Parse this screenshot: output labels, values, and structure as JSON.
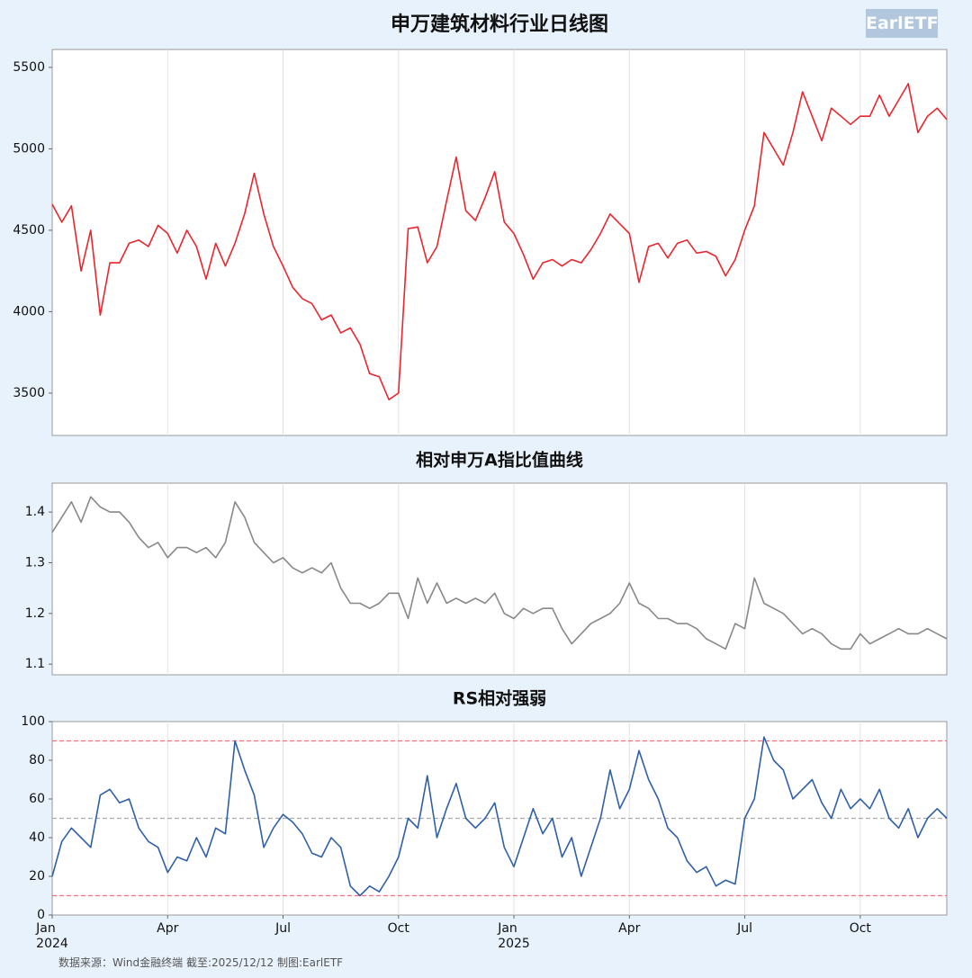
{
  "watermark": "EarlETF",
  "source": "数据来源：Wind金融终端 截至:2025/12/12 制图:EarlETF",
  "chart_data": [
    {
      "type": "line",
      "title": "申万建筑材料行业日线图",
      "ylim": [
        3240,
        5610
      ],
      "yticks": [
        3500,
        4000,
        4500,
        5000,
        5500
      ],
      "grid": true,
      "series": [
        {
          "name": "申万建筑材料",
          "color": "#e8262d",
          "values": [
            4660,
            4550,
            4650,
            4250,
            4500,
            3980,
            4300,
            4300,
            4420,
            4440,
            4400,
            4530,
            4480,
            4360,
            4500,
            4400,
            4200,
            4420,
            4280,
            4420,
            4600,
            4850,
            4600,
            4400,
            4280,
            4150,
            4080,
            4050,
            3950,
            3980,
            3870,
            3900,
            3800,
            3620,
            3600,
            3460,
            3500,
            4510,
            4520,
            4300,
            4400,
            4680,
            4950,
            4620,
            4560,
            4700,
            4860,
            4550,
            4480,
            4350,
            4200,
            4300,
            4320,
            4280,
            4320,
            4300,
            4380,
            4480,
            4600,
            4540,
            4480,
            4180,
            4400,
            4420,
            4330,
            4420,
            4440,
            4360,
            4370,
            4340,
            4220,
            4320,
            4500,
            4650,
            5100,
            5000,
            4900,
            5100,
            5350,
            5200,
            5050,
            5250,
            5200,
            5150,
            5200,
            5200,
            5330,
            5200,
            5300,
            5400,
            5100,
            5200,
            5250,
            5180
          ]
        }
      ]
    },
    {
      "type": "line",
      "title": "相对申万A指比值曲线",
      "ylim": [
        1.079,
        1.457
      ],
      "yticks": [
        1.1,
        1.2,
        1.3,
        1.4
      ],
      "grid": true,
      "series": [
        {
          "name": "比值",
          "color": "#888888",
          "values": [
            1.36,
            1.39,
            1.42,
            1.38,
            1.43,
            1.41,
            1.4,
            1.4,
            1.38,
            1.35,
            1.33,
            1.34,
            1.31,
            1.33,
            1.33,
            1.32,
            1.33,
            1.31,
            1.34,
            1.42,
            1.39,
            1.34,
            1.32,
            1.3,
            1.31,
            1.29,
            1.28,
            1.29,
            1.28,
            1.3,
            1.25,
            1.22,
            1.22,
            1.21,
            1.22,
            1.24,
            1.24,
            1.19,
            1.27,
            1.22,
            1.26,
            1.22,
            1.23,
            1.22,
            1.23,
            1.22,
            1.24,
            1.2,
            1.19,
            1.21,
            1.2,
            1.21,
            1.21,
            1.17,
            1.14,
            1.16,
            1.18,
            1.19,
            1.2,
            1.22,
            1.26,
            1.22,
            1.21,
            1.19,
            1.19,
            1.18,
            1.18,
            1.17,
            1.15,
            1.14,
            1.13,
            1.18,
            1.17,
            1.27,
            1.22,
            1.21,
            1.2,
            1.18,
            1.16,
            1.17,
            1.16,
            1.14,
            1.13,
            1.13,
            1.16,
            1.14,
            1.15,
            1.16,
            1.17,
            1.16,
            1.16,
            1.17,
            1.16,
            1.15
          ]
        }
      ]
    },
    {
      "type": "line",
      "title": "RS相对强弱",
      "ylim": [
        0,
        100
      ],
      "yticks": [
        0,
        20,
        40,
        60,
        80,
        100
      ],
      "grid": true,
      "reference_lines": [
        {
          "value": 90,
          "color": "#f07080"
        },
        {
          "value": 50,
          "color": "#aaaaaa"
        },
        {
          "value": 10,
          "color": "#f07080"
        }
      ],
      "categories": [
        "Jan\n2024",
        null,
        null,
        null,
        null,
        null,
        null,
        null,
        null,
        null,
        null,
        null,
        "Apr",
        null,
        null,
        null,
        null,
        null,
        null,
        null,
        null,
        null,
        null,
        null,
        "Jul",
        null,
        null,
        null,
        null,
        null,
        null,
        null,
        null,
        null,
        null,
        null,
        "Oct",
        null,
        null,
        null,
        null,
        null,
        null,
        null,
        null,
        null,
        null,
        null,
        "Jan\n2025",
        null,
        null,
        null,
        null,
        null,
        null,
        null,
        null,
        null,
        null,
        null,
        "Apr",
        null,
        null,
        null,
        null,
        null,
        null,
        null,
        null,
        null,
        null,
        null,
        "Jul",
        null,
        null,
        null,
        null,
        null,
        null,
        null,
        null,
        null,
        null,
        null,
        "Oct",
        null,
        null,
        null,
        null,
        null,
        null,
        null,
        null,
        null
      ],
      "series": [
        {
          "name": "RS",
          "color": "#2f5fa8",
          "values": [
            20,
            38,
            45,
            40,
            35,
            62,
            65,
            58,
            60,
            45,
            38,
            35,
            22,
            30,
            28,
            40,
            30,
            45,
            42,
            90,
            75,
            62,
            35,
            45,
            52,
            48,
            42,
            32,
            30,
            40,
            35,
            15,
            10,
            15,
            12,
            20,
            30,
            50,
            45,
            72,
            40,
            55,
            68,
            50,
            45,
            50,
            58,
            35,
            25,
            40,
            55,
            42,
            50,
            30,
            40,
            20,
            35,
            50,
            75,
            55,
            65,
            85,
            70,
            60,
            45,
            40,
            28,
            22,
            25,
            15,
            18,
            16,
            50,
            60,
            92,
            80,
            75,
            60,
            65,
            70,
            58,
            50,
            65,
            55,
            60,
            55,
            65,
            50,
            45,
            55,
            40,
            50,
            55,
            50
          ]
        }
      ]
    }
  ]
}
